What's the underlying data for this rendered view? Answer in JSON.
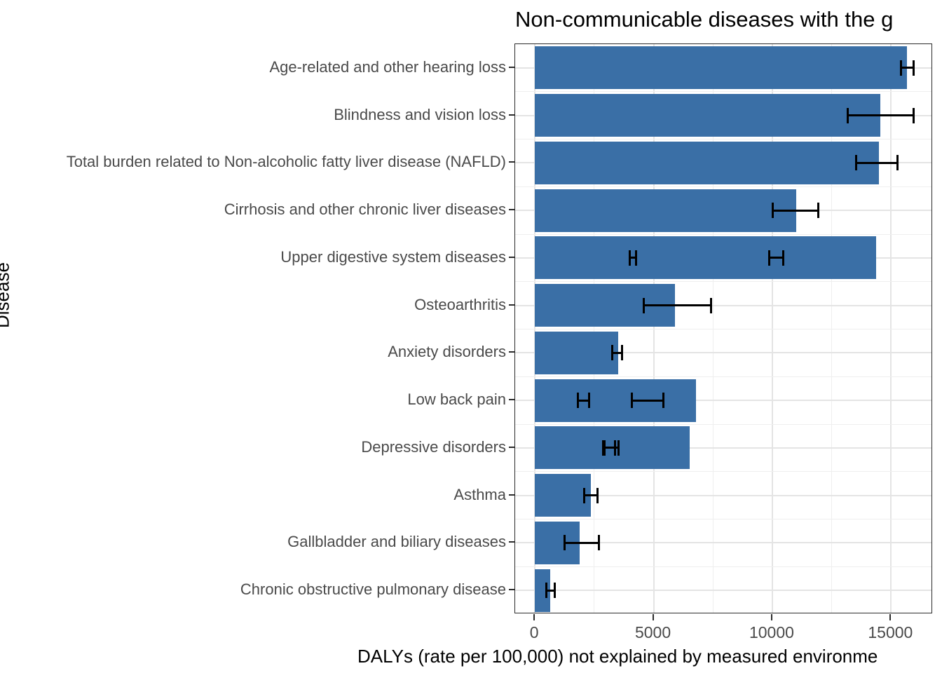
{
  "title": "Non-communicable diseases with the g",
  "axes": {
    "x_label": "DALYs (rate per 100,000) not explained by measured environme",
    "y_label": "Disease",
    "x_tick_labels": [
      "0",
      "5000",
      "10000",
      "15000"
    ],
    "x_tick_values": [
      0,
      5000,
      10000,
      15000
    ]
  },
  "colors": {
    "bar": "#3a6fa6",
    "error_bar": "#000000",
    "grid_major": "#e4e4e4",
    "grid_minor": "#efefef",
    "panel_border": "#2b2b2b",
    "tick_text": "#4a4a4a",
    "title_text": "#000000"
  },
  "chart_data": {
    "type": "bar",
    "orientation": "horizontal",
    "title": "Non-communicable diseases with the g",
    "xlabel": "DALYs (rate per 100,000) not explained by measured environme",
    "ylabel": "Disease",
    "xlim": [
      -830,
      16760
    ],
    "x_ticks": [
      0,
      5000,
      10000,
      15000
    ],
    "x_minor_gridlines": [
      2500,
      7500,
      12500
    ],
    "grid": true,
    "legend": false,
    "categories": [
      "Age-related and other hearing loss",
      "Blindness and vision loss",
      "Total burden related to Non-alcoholic fatty liver disease (NAFLD)",
      "Cirrhosis and other chronic liver diseases",
      "Upper digestive system diseases",
      "Osteoarthritis",
      "Anxiety disorders",
      "Low back pain",
      "Depressive disorders",
      "Asthma",
      "Gallbladder and biliary diseases",
      "Chronic obstructive pulmonary disease"
    ],
    "values": [
      15680,
      14540,
      14490,
      11000,
      14370,
      5890,
      3510,
      6780,
      6510,
      2350,
      1890,
      650
    ],
    "error_bars": [
      [
        [
          15430,
          15950
        ]
      ],
      [
        [
          13170,
          15950
        ]
      ],
      [
        [
          13540,
          15280
        ]
      ],
      [
        [
          10020,
          11940
        ]
      ],
      [
        [
          3990,
          4270
        ],
        [
          9870,
          10460
        ]
      ],
      [
        [
          4580,
          7430
        ]
      ],
      [
        [
          3250,
          3660
        ]
      ],
      [
        [
          1810,
          2280
        ],
        [
          4090,
          5400
        ]
      ],
      [
        [
          2870,
          3390
        ],
        [
          2930,
          3530
        ]
      ],
      [
        [
          2070,
          2650
        ]
      ],
      [
        [
          1250,
          2710
        ]
      ],
      [
        [
          480,
          830
        ]
      ]
    ]
  }
}
